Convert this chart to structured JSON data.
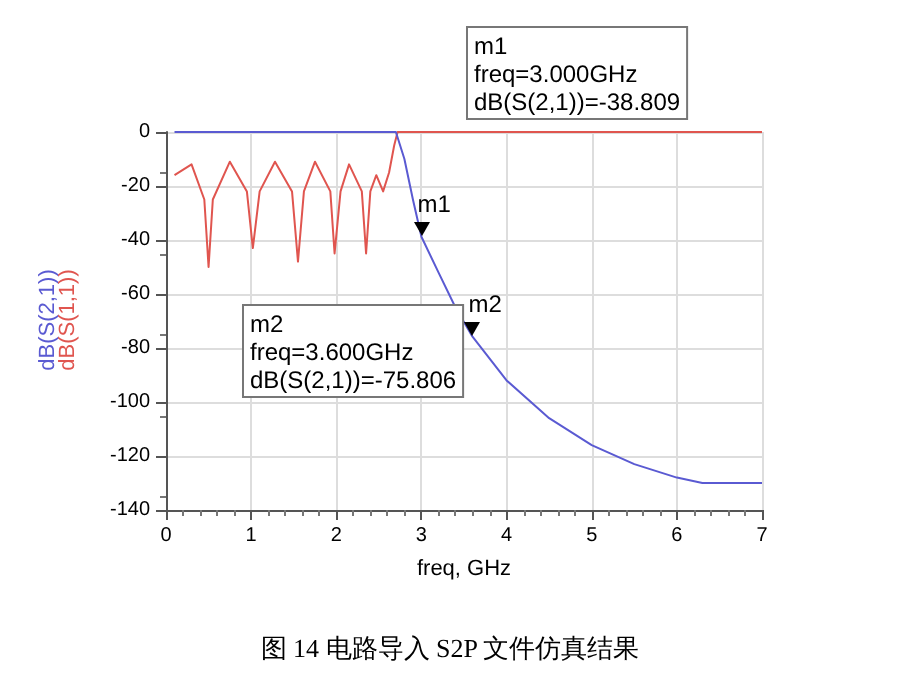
{
  "chart_data": {
    "type": "line",
    "xlabel": "freq, GHz",
    "x": [
      0.1,
      2.7,
      2.8,
      2.9,
      3.0,
      3.2,
      3.4,
      3.6,
      4.0,
      4.5,
      5.0,
      5.5,
      6.0,
      6.3,
      7.0
    ],
    "series": [
      {
        "name": "dB(S(2,1))",
        "color": "#5a5ad2",
        "values": [
          0,
          0,
          -10,
          -25,
          -38.809,
          -52,
          -65,
          -75.806,
          -92,
          -106,
          -116,
          -123,
          -128,
          -130,
          -130
        ]
      },
      {
        "name": "dB(S(1,1))",
        "color": "#e0554f",
        "x": [
          0.1,
          0.3,
          0.45,
          0.5,
          0.55,
          0.75,
          0.95,
          1.02,
          1.1,
          1.28,
          1.48,
          1.55,
          1.62,
          1.75,
          1.93,
          1.98,
          2.05,
          2.15,
          2.3,
          2.35,
          2.4,
          2.47,
          2.55,
          2.62,
          2.68,
          2.72,
          7.0
        ],
        "values": [
          -16,
          -12,
          -25,
          -50,
          -25,
          -11,
          -22,
          -43,
          -22,
          -11,
          -22,
          -48,
          -22,
          -11,
          -22,
          -45,
          -22,
          -12,
          -22,
          -45,
          -22,
          -16,
          -22,
          -15,
          -5,
          0,
          0
        ]
      }
    ],
    "xlim": [
      0,
      7
    ],
    "xticks": [
      0,
      1,
      2,
      3,
      4,
      5,
      6,
      7
    ],
    "ylim": [
      -140,
      0
    ],
    "yticks": [
      -140,
      -120,
      -100,
      -80,
      -60,
      -40,
      -20,
      0
    ],
    "grid": true,
    "legend": false,
    "marker": "none",
    "line_style": "solid",
    "annotations": [
      {
        "text": "m1",
        "x": 3.0,
        "y": -38.809
      },
      {
        "text": "m2",
        "x": 3.6,
        "y": -75.806
      },
      "m1\nfreq=3.000GHz\ndB(S(2,1))=-38.809",
      "m2\nfreq=3.600GHz\ndB(S(2,1))=-75.806",
      "图 14 电路导入 S2P 文件仿真结果"
    ]
  }
}
